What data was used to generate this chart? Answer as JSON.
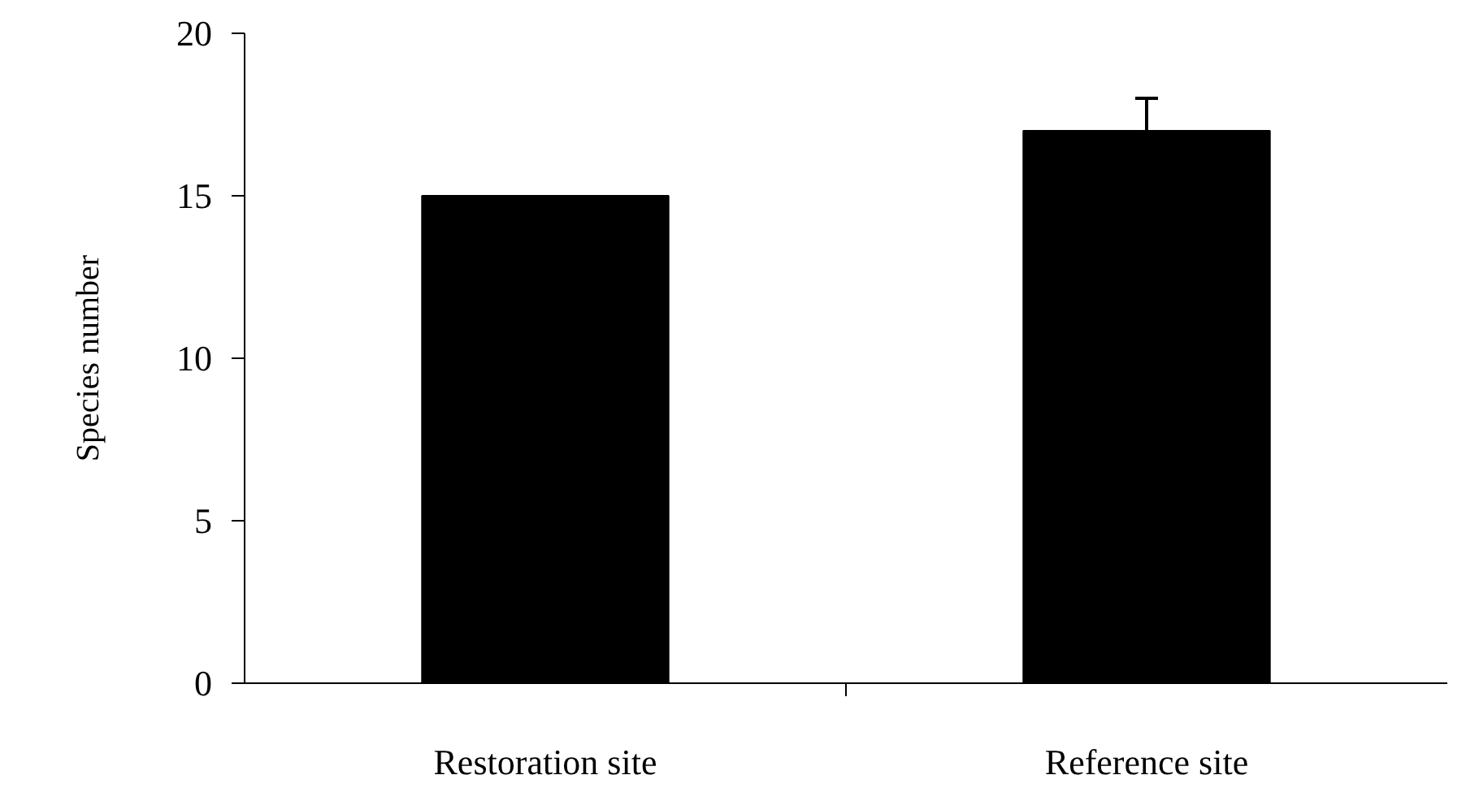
{
  "chart_data": {
    "type": "bar",
    "ylabel": "Species number",
    "categories": [
      "Restoration site",
      "Reference site"
    ],
    "values": [
      15,
      17
    ],
    "color": "#000000",
    "errors": [
      null,
      [
        17,
        18
      ]
    ],
    "ylim": [
      0,
      20
    ],
    "yticks": [
      0,
      5,
      10,
      15,
      20
    ],
    "grid": false
  }
}
